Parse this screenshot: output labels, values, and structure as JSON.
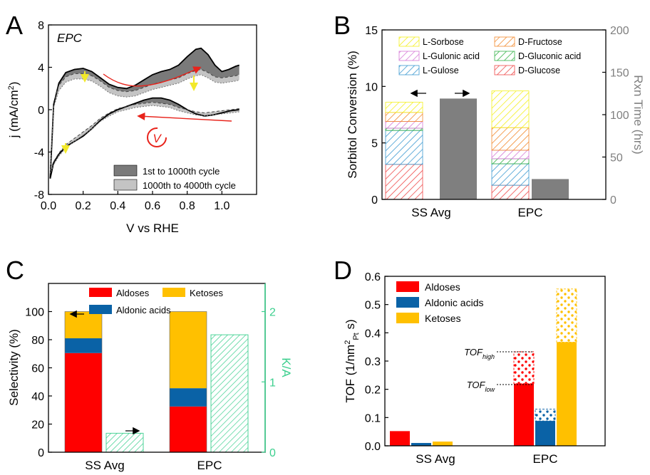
{
  "colors": {
    "aldoses": "#ff0000",
    "aldonic": "#0a62a6",
    "ketoses": "#ffc000",
    "k_over_a": "#3ccf8e",
    "rxn_time": "#7f7f7f",
    "l_sorbose": "#f4f01e",
    "l_gulonic": "#d678d6",
    "l_gulose": "#3d9ad1",
    "d_fructose": "#f28a2e",
    "d_gluconic": "#36b34a",
    "d_glucose": "#ef4a4a",
    "dark_band": "#7a7a7a",
    "light_band": "#c4c4c4",
    "arrow_red": "#e8231b",
    "arrow_yellow": "#f2e92a"
  },
  "chart_data": [
    {
      "panel": "A",
      "type": "line",
      "title": "EPC",
      "xlabel": "V vs RHE",
      "ylabel": "j (mA/cm²)",
      "xlim": [
        0.0,
        1.2
      ],
      "ylim": [
        -8,
        8
      ],
      "xticks": [
        "0.0",
        "0.2",
        "0.4",
        "0.6",
        "0.8",
        "1.0"
      ],
      "yticks": [
        "-8",
        "-4",
        "0",
        "4",
        "8"
      ],
      "legend": [
        "1st to 1000th cycle",
        "1000th to 4000th cycle"
      ],
      "scan_symbol": "V",
      "series": [
        {
          "name": "cycle 1 (anodic)",
          "x": [
            0.01,
            0.03,
            0.06,
            0.1,
            0.15,
            0.2,
            0.25,
            0.3,
            0.35,
            0.4,
            0.45,
            0.5,
            0.55,
            0.6,
            0.65,
            0.7,
            0.75,
            0.8,
            0.85,
            0.88,
            0.92,
            0.96,
            1.0,
            1.04,
            1.08,
            1.1
          ],
          "y": [
            -6.5,
            0.5,
            2.5,
            3.5,
            3.8,
            3.9,
            3.6,
            3.0,
            2.4,
            2.1,
            2.0,
            2.3,
            2.8,
            3.3,
            3.6,
            3.8,
            4.2,
            5.0,
            5.7,
            5.8,
            5.2,
            4.2,
            3.6,
            3.8,
            4.1,
            4.2
          ]
        },
        {
          "name": "cycle 1 (cathodic)",
          "x": [
            1.1,
            1.05,
            1.0,
            0.95,
            0.9,
            0.85,
            0.8,
            0.75,
            0.7,
            0.65,
            0.6,
            0.55,
            0.5,
            0.45,
            0.4,
            0.35,
            0.3,
            0.25,
            0.2,
            0.15,
            0.1,
            0.06,
            0.03,
            0.01
          ],
          "y": [
            0.0,
            -0.1,
            -0.3,
            -0.5,
            -0.6,
            -0.4,
            0.0,
            0.5,
            0.9,
            1.1,
            1.1,
            0.9,
            0.6,
            0.3,
            0.0,
            -0.4,
            -1.0,
            -1.8,
            -2.5,
            -3.0,
            -3.5,
            -4.2,
            -5.0,
            -6.5
          ]
        },
        {
          "name": "cycle 4000 (anodic)",
          "x": [
            0.01,
            0.03,
            0.06,
            0.1,
            0.15,
            0.2,
            0.25,
            0.3,
            0.35,
            0.4,
            0.45,
            0.5,
            0.55,
            0.6,
            0.65,
            0.7,
            0.75,
            0.8,
            0.85,
            0.88,
            0.92,
            0.96,
            1.0,
            1.04,
            1.08,
            1.1
          ],
          "y": [
            -6.0,
            0.2,
            1.8,
            2.6,
            2.9,
            2.9,
            2.7,
            2.2,
            1.6,
            1.3,
            1.2,
            1.3,
            1.6,
            1.9,
            2.1,
            2.3,
            2.5,
            2.9,
            3.2,
            3.3,
            3.0,
            2.6,
            2.5,
            2.6,
            2.7,
            2.8
          ]
        },
        {
          "name": "cycle 4000 (cathodic)",
          "x": [
            1.1,
            1.05,
            1.0,
            0.95,
            0.9,
            0.85,
            0.8,
            0.75,
            0.7,
            0.65,
            0.6,
            0.55,
            0.5,
            0.45,
            0.4,
            0.35,
            0.3,
            0.25,
            0.2,
            0.15,
            0.1,
            0.06,
            0.03,
            0.01
          ],
          "y": [
            -0.2,
            -0.3,
            -0.4,
            -0.5,
            -0.6,
            -0.5,
            -0.3,
            -0.1,
            0.2,
            0.3,
            0.4,
            0.3,
            0.2,
            0.0,
            -0.2,
            -0.6,
            -1.1,
            -1.8,
            -2.4,
            -3.0,
            -3.6,
            -4.4,
            -5.2,
            -6.0
          ]
        }
      ],
      "cycle_1000_offset": 0.5
    },
    {
      "panel": "B",
      "type": "bar",
      "xlabel": "",
      "ylabel": "Sorbitol Conversion (%)",
      "ylabel_right": "Rxn Time (hrs)",
      "categories": [
        "SS Avg",
        "EPC"
      ],
      "ylim": [
        0,
        15
      ],
      "ylim_right": [
        0,
        200
      ],
      "yticks": [
        "0",
        "5",
        "10",
        "15"
      ],
      "yticks_right": [
        "0",
        "50",
        "100",
        "150",
        "200"
      ],
      "stack_order": [
        "D-Glucose",
        "L-Gulose",
        "D-Gluconic acid",
        "L-Gulonic acid",
        "D-Fructose",
        "L-Sorbose"
      ],
      "series": [
        {
          "name": "D-Glucose",
          "values": [
            3.1,
            1.25
          ]
        },
        {
          "name": "L-Gulose",
          "values": [
            3.0,
            1.9
          ]
        },
        {
          "name": "D-Gluconic acid",
          "values": [
            0.2,
            0.45
          ]
        },
        {
          "name": "L-Gulonic acid",
          "values": [
            0.6,
            0.75
          ]
        },
        {
          "name": "D-Fructose",
          "values": [
            0.8,
            2.0
          ]
        },
        {
          "name": "L-Sorbose",
          "values": [
            0.9,
            3.25
          ]
        }
      ],
      "rxn_time": {
        "name": "Rxn Time",
        "values": [
          119,
          24
        ]
      },
      "legend": [
        "L-Sorbose",
        "D-Fructose",
        "L-Gulonic acid",
        "D-Gluconic acid",
        "L-Gulose",
        "D-Glucose"
      ]
    },
    {
      "panel": "C",
      "type": "bar",
      "xlabel": "",
      "ylabel": "Selectivity (%)",
      "ylabel_right": "K/A",
      "categories": [
        "SS Avg",
        "EPC"
      ],
      "ylim": [
        0,
        120
      ],
      "ylim_right": [
        0,
        2.4
      ],
      "yticks": [
        "0",
        "20",
        "40",
        "60",
        "80",
        "100"
      ],
      "yticks_right": [
        "0",
        "1",
        "2"
      ],
      "series": [
        {
          "name": "Aldoses",
          "values": [
            70.5,
            32.5
          ]
        },
        {
          "name": "Aldonic acids",
          "values": [
            10.5,
            13.0
          ]
        },
        {
          "name": "Ketoses",
          "values": [
            19.0,
            54.5
          ]
        }
      ],
      "k_over_a": {
        "name": "K/A",
        "values": [
          0.27,
          1.67
        ]
      },
      "legend": [
        "Aldoses",
        "Ketoses",
        "Aldonic acids"
      ]
    },
    {
      "panel": "D",
      "type": "bar",
      "xlabel": "",
      "ylabel": "TOF (1/nm²Pt s)",
      "categories": [
        "SS Avg",
        "EPC"
      ],
      "ylim": [
        0,
        0.6
      ],
      "yticks": [
        "0.0",
        "0.1",
        "0.2",
        "0.3",
        "0.4",
        "0.5",
        "0.6"
      ],
      "series": [
        {
          "name": "Aldoses",
          "values": [
            0.052,
            0.22
          ],
          "high_values": [
            null,
            0.333
          ]
        },
        {
          "name": "Aldonic acids",
          "values": [
            0.01,
            0.088
          ],
          "high_values": [
            null,
            0.13
          ]
        },
        {
          "name": "Ketoses",
          "values": [
            0.015,
            0.367
          ],
          "high_values": [
            null,
            0.555
          ]
        }
      ],
      "annotations": {
        "tof_high": "TOF",
        "tof_high_sub": "high",
        "tof_low": "TOF",
        "tof_low_sub": "low"
      },
      "legend": [
        "Aldoses",
        "Aldonic acids",
        "Ketoses"
      ]
    }
  ],
  "panel_labels": [
    "A",
    "B",
    "C",
    "D"
  ]
}
